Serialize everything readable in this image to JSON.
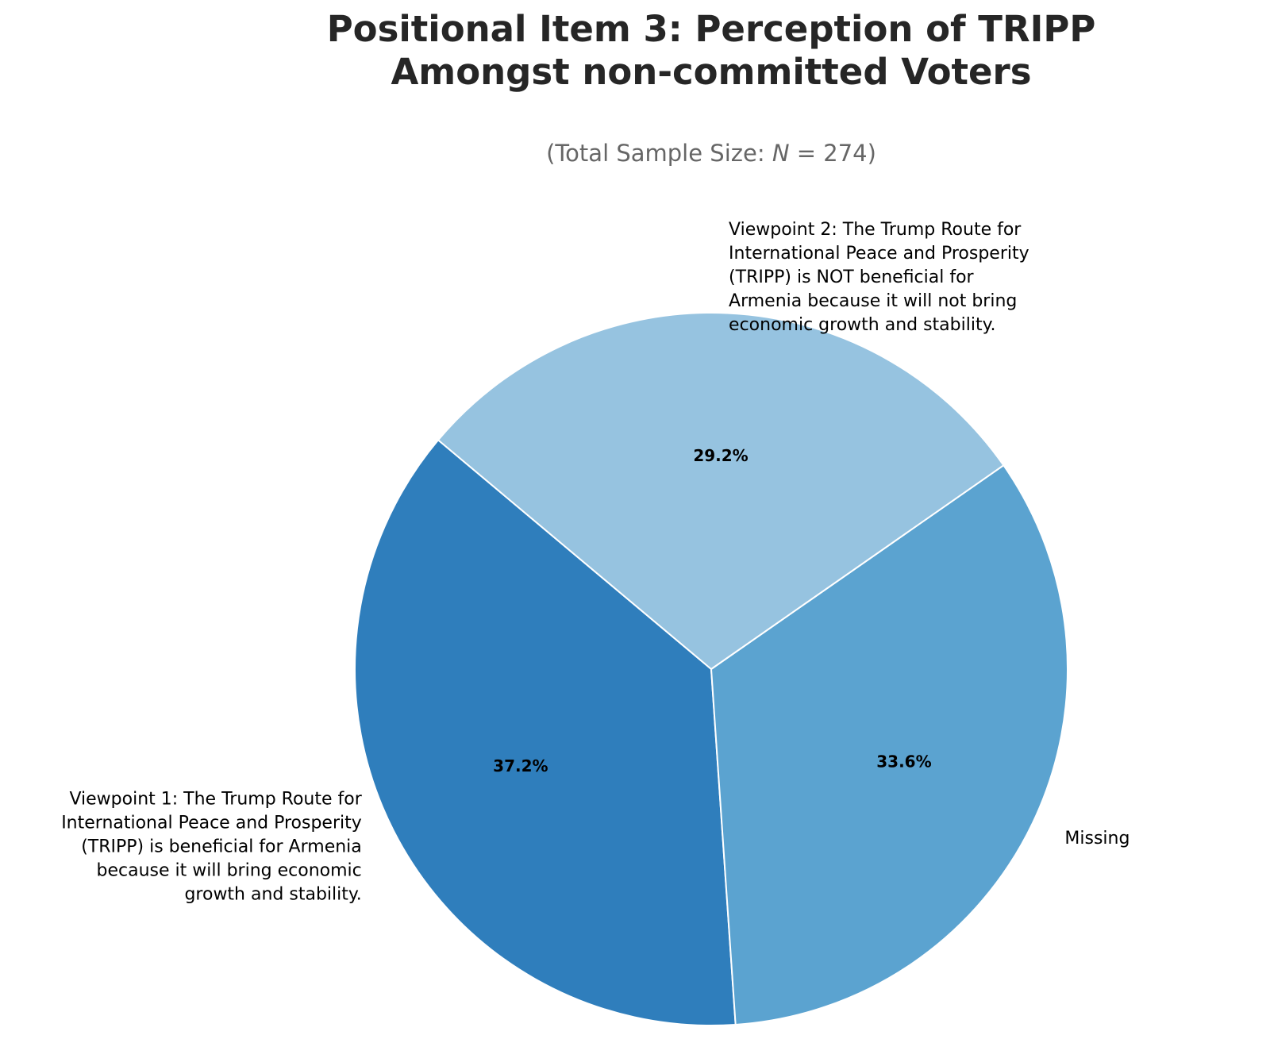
{
  "chart_data": {
    "type": "pie",
    "title_lines": [
      "Positional Item 3: Perception of TRIPP",
      "Amongst non-committed Voters"
    ],
    "subtitle": {
      "prefix": "(Total Sample Size: ",
      "math": "N",
      "suffix": " = 274)"
    },
    "start_angle_deg": 140,
    "slices": [
      {
        "name": "Viewpoint 1",
        "label_lines": [
          "Viewpoint 1: The Trump Route for",
          "International Peace and Prosperity",
          "(TRIPP) is beneficial for Armenia",
          "because it will bring economic",
          "growth and stability."
        ],
        "value": 37.2,
        "pct_label": "37.2%",
        "color": "#2f7ebc"
      },
      {
        "name": "Missing",
        "label_lines": [
          "Missing"
        ],
        "value": 33.6,
        "pct_label": "33.6%",
        "color": "#5ba3d0"
      },
      {
        "name": "Viewpoint 2",
        "label_lines": [
          "Viewpoint 2: The Trump Route for",
          "International Peace and Prosperity",
          "(TRIPP) is NOT beneficial for",
          "Armenia because it will not bring",
          "economic growth and stability."
        ],
        "value": 29.2,
        "pct_label": "29.2%",
        "color": "#96c3e0"
      }
    ],
    "legend": "none"
  }
}
